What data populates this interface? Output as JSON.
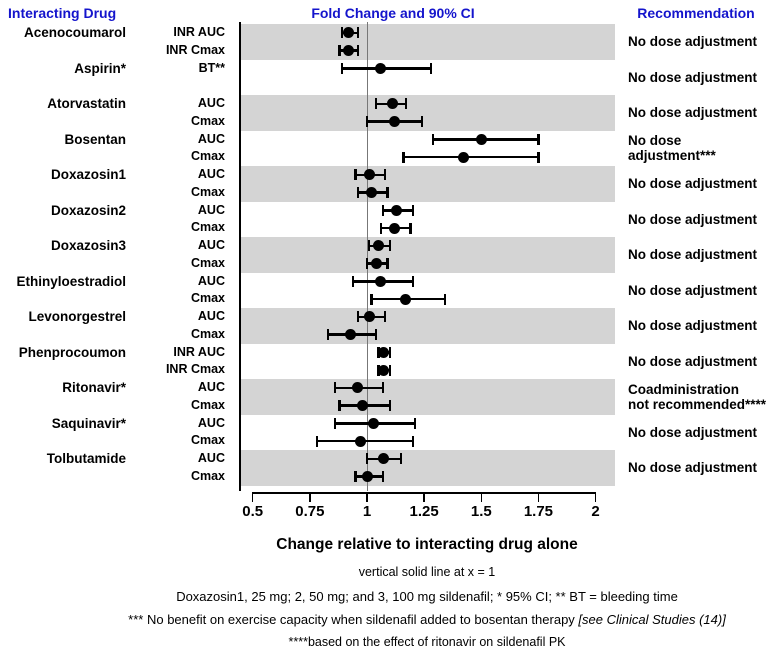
{
  "colors": {
    "header_blue": "#1414cc",
    "band_gray": "#d4d4d4",
    "marker_black": "#000000",
    "reference_line_gray": "#777777"
  },
  "header": {
    "col1": "Interacting Drug",
    "col2": "Fold Change and 90% CI",
    "col3": "Recommendation"
  },
  "chart_data": {
    "type": "forest",
    "xlabel": "Change relative to interacting drug alone",
    "x_axis": {
      "range": [
        0.5,
        2
      ],
      "ticks": [
        0.5,
        0.75,
        1,
        1.25,
        1.5,
        1.75,
        2
      ],
      "tick_labels": [
        "0.5",
        "0.75",
        "1",
        "1.25",
        "1.5",
        "1.75",
        "2"
      ],
      "reference_line_x": 1
    },
    "groups": [
      {
        "drug": "Acenocoumarol",
        "shaded": true,
        "recommendation": "No dose adjustment",
        "measures": [
          {
            "label": "INR AUC",
            "value": 0.92,
            "lo": 0.89,
            "hi": 0.96
          },
          {
            "label": "INR Cmax",
            "value": 0.92,
            "lo": 0.88,
            "hi": 0.96
          }
        ]
      },
      {
        "drug": "Aspirin*",
        "shaded": false,
        "recommendation": "No dose adjustment",
        "measures": [
          {
            "label": "BT**",
            "value": 1.06,
            "lo": 0.89,
            "hi": 1.28
          }
        ]
      },
      {
        "drug": "Atorvastatin",
        "shaded": true,
        "recommendation": "No dose adjustment",
        "measures": [
          {
            "label": "AUC",
            "value": 1.11,
            "lo": 1.04,
            "hi": 1.17
          },
          {
            "label": "Cmax",
            "value": 1.12,
            "lo": 1.0,
            "hi": 1.24
          }
        ]
      },
      {
        "drug": "Bosentan",
        "shaded": false,
        "recommendation": "No dose adjustment***",
        "measures": [
          {
            "label": "AUC",
            "value": 1.5,
            "lo": 1.29,
            "hi": 1.75
          },
          {
            "label": "Cmax",
            "value": 1.42,
            "lo": 1.16,
            "hi": 1.75
          }
        ]
      },
      {
        "drug": "Doxazosin1",
        "shaded": true,
        "recommendation": "No dose adjustment",
        "measures": [
          {
            "label": "AUC",
            "value": 1.01,
            "lo": 0.95,
            "hi": 1.08
          },
          {
            "label": "Cmax",
            "value": 1.02,
            "lo": 0.96,
            "hi": 1.09
          }
        ]
      },
      {
        "drug": "Doxazosin2",
        "shaded": false,
        "recommendation": "No dose adjustment",
        "measures": [
          {
            "label": "AUC",
            "value": 1.13,
            "lo": 1.07,
            "hi": 1.2
          },
          {
            "label": "Cmax",
            "value": 1.12,
            "lo": 1.06,
            "hi": 1.19
          }
        ]
      },
      {
        "drug": "Doxazosin3",
        "shaded": true,
        "recommendation": "No dose adjustment",
        "measures": [
          {
            "label": "AUC",
            "value": 1.05,
            "lo": 1.01,
            "hi": 1.1
          },
          {
            "label": "Cmax",
            "value": 1.04,
            "lo": 1.0,
            "hi": 1.09
          }
        ]
      },
      {
        "drug": "Ethinyloestradiol",
        "shaded": false,
        "recommendation": "No dose adjustment",
        "measures": [
          {
            "label": "AUC",
            "value": 1.06,
            "lo": 0.94,
            "hi": 1.2
          },
          {
            "label": "Cmax",
            "value": 1.17,
            "lo": 1.02,
            "hi": 1.34
          }
        ]
      },
      {
        "drug": "Levonorgestrel",
        "shaded": true,
        "recommendation": "No dose adjustment",
        "measures": [
          {
            "label": "AUC",
            "value": 1.01,
            "lo": 0.96,
            "hi": 1.08
          },
          {
            "label": "Cmax",
            "value": 0.93,
            "lo": 0.83,
            "hi": 1.04
          }
        ]
      },
      {
        "drug": "Phenprocoumon",
        "shaded": false,
        "recommendation": "No dose adjustment",
        "measures": [
          {
            "label": "INR AUC",
            "value": 1.07,
            "lo": 1.05,
            "hi": 1.1
          },
          {
            "label": "INR Cmax",
            "value": 1.07,
            "lo": 1.05,
            "hi": 1.1
          }
        ]
      },
      {
        "drug": "Ritonavir*",
        "shaded": true,
        "recommendation": "Coadministration\nnot recommended****",
        "measures": [
          {
            "label": "AUC",
            "value": 0.96,
            "lo": 0.86,
            "hi": 1.07
          },
          {
            "label": "Cmax",
            "value": 0.98,
            "lo": 0.88,
            "hi": 1.1
          }
        ]
      },
      {
        "drug": "Saquinavir*",
        "shaded": false,
        "recommendation": "No dose adjustment",
        "measures": [
          {
            "label": "AUC",
            "value": 1.03,
            "lo": 0.86,
            "hi": 1.21
          },
          {
            "label": "Cmax",
            "value": 0.97,
            "lo": 0.78,
            "hi": 1.2
          }
        ]
      },
      {
        "drug": "Tolbutamide",
        "shaded": true,
        "recommendation": "No dose adjustment",
        "measures": [
          {
            "label": "AUC",
            "value": 1.07,
            "lo": 1.0,
            "hi": 1.15
          },
          {
            "label": "Cmax",
            "value": 1.0,
            "lo": 0.95,
            "hi": 1.07
          }
        ]
      }
    ]
  },
  "footnotes": [
    "vertical solid line at x = 1",
    "Doxazosin1, 25 mg; 2, 50 mg; and 3, 100 mg sildenafil; * 95% CI; ** BT = bleeding time",
    {
      "text": "*** No benefit on exercise capacity when sildenafil added to bosentan therapy ",
      "italic": " [see Clinical Studies (14)]"
    },
    "****based on the effect of ritonavir on sildenafil PK"
  ]
}
